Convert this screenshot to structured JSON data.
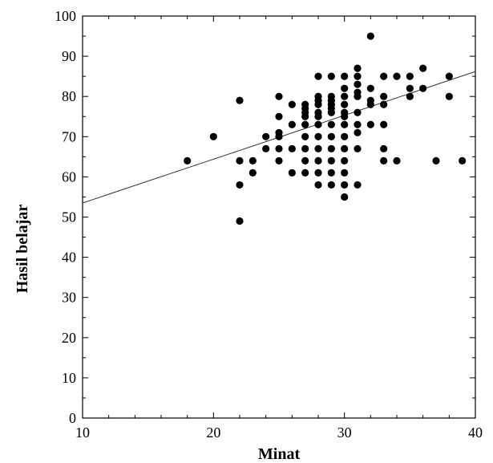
{
  "chart_data": {
    "type": "scatter",
    "title": "",
    "xlabel": "Minat",
    "ylabel": "Hasil belajar",
    "xlim": [
      10,
      40
    ],
    "ylim": [
      0,
      100
    ],
    "x_ticks": [
      "10",
      "20",
      "30",
      "40"
    ],
    "y_ticks": [
      "0",
      "10",
      "20",
      "30",
      "40",
      "50",
      "60",
      "70",
      "80",
      "90",
      "100"
    ],
    "grid": false,
    "legend": "none",
    "colors": {
      "points": "#000000",
      "fit_line": "#333333",
      "axes": "#000000"
    },
    "fit_line": {
      "x": [
        10,
        40
      ],
      "y": [
        53.5,
        86.2
      ]
    },
    "points": [
      [
        18,
        64
      ],
      [
        20,
        70
      ],
      [
        22,
        79
      ],
      [
        22,
        64
      ],
      [
        22,
        58
      ],
      [
        22,
        49
      ],
      [
        23,
        64
      ],
      [
        23,
        61
      ],
      [
        24,
        70
      ],
      [
        24,
        67
      ],
      [
        25,
        80
      ],
      [
        25,
        75
      ],
      [
        25,
        71
      ],
      [
        25,
        70
      ],
      [
        25,
        67
      ],
      [
        25,
        64
      ],
      [
        26,
        78
      ],
      [
        26,
        73
      ],
      [
        26,
        67
      ],
      [
        26,
        61
      ],
      [
        27,
        78
      ],
      [
        27,
        77
      ],
      [
        27,
        76
      ],
      [
        27,
        75
      ],
      [
        27,
        73
      ],
      [
        27,
        70
      ],
      [
        27,
        67
      ],
      [
        27,
        64
      ],
      [
        27,
        61
      ],
      [
        28,
        85
      ],
      [
        28,
        80
      ],
      [
        28,
        79
      ],
      [
        28,
        78
      ],
      [
        28,
        76
      ],
      [
        28,
        75
      ],
      [
        28,
        73
      ],
      [
        28,
        70
      ],
      [
        28,
        67
      ],
      [
        28,
        64
      ],
      [
        28,
        61
      ],
      [
        28,
        58
      ],
      [
        29,
        85
      ],
      [
        29,
        80
      ],
      [
        29,
        79
      ],
      [
        29,
        78
      ],
      [
        29,
        77
      ],
      [
        29,
        76
      ],
      [
        29,
        73
      ],
      [
        29,
        70
      ],
      [
        29,
        67
      ],
      [
        29,
        64
      ],
      [
        29,
        61
      ],
      [
        29,
        58
      ],
      [
        30,
        85
      ],
      [
        30,
        82
      ],
      [
        30,
        80
      ],
      [
        30,
        78
      ],
      [
        30,
        76
      ],
      [
        30,
        75
      ],
      [
        30,
        73
      ],
      [
        30,
        70
      ],
      [
        30,
        67
      ],
      [
        30,
        64
      ],
      [
        30,
        61
      ],
      [
        30,
        58
      ],
      [
        30,
        55
      ],
      [
        31,
        87
      ],
      [
        31,
        85
      ],
      [
        31,
        83
      ],
      [
        31,
        81
      ],
      [
        31,
        80
      ],
      [
        31,
        76
      ],
      [
        31,
        73
      ],
      [
        31,
        71
      ],
      [
        31,
        67
      ],
      [
        31,
        58
      ],
      [
        32,
        95
      ],
      [
        32,
        82
      ],
      [
        32,
        79
      ],
      [
        32,
        78
      ],
      [
        32,
        73
      ],
      [
        33,
        85
      ],
      [
        33,
        80
      ],
      [
        33,
        78
      ],
      [
        33,
        73
      ],
      [
        33,
        67
      ],
      [
        33,
        64
      ],
      [
        34,
        85
      ],
      [
        34,
        64
      ],
      [
        35,
        85
      ],
      [
        35,
        82
      ],
      [
        35,
        80
      ],
      [
        36,
        87
      ],
      [
        36,
        82
      ],
      [
        37,
        64
      ],
      [
        38,
        85
      ],
      [
        38,
        80
      ],
      [
        39,
        64
      ]
    ]
  }
}
